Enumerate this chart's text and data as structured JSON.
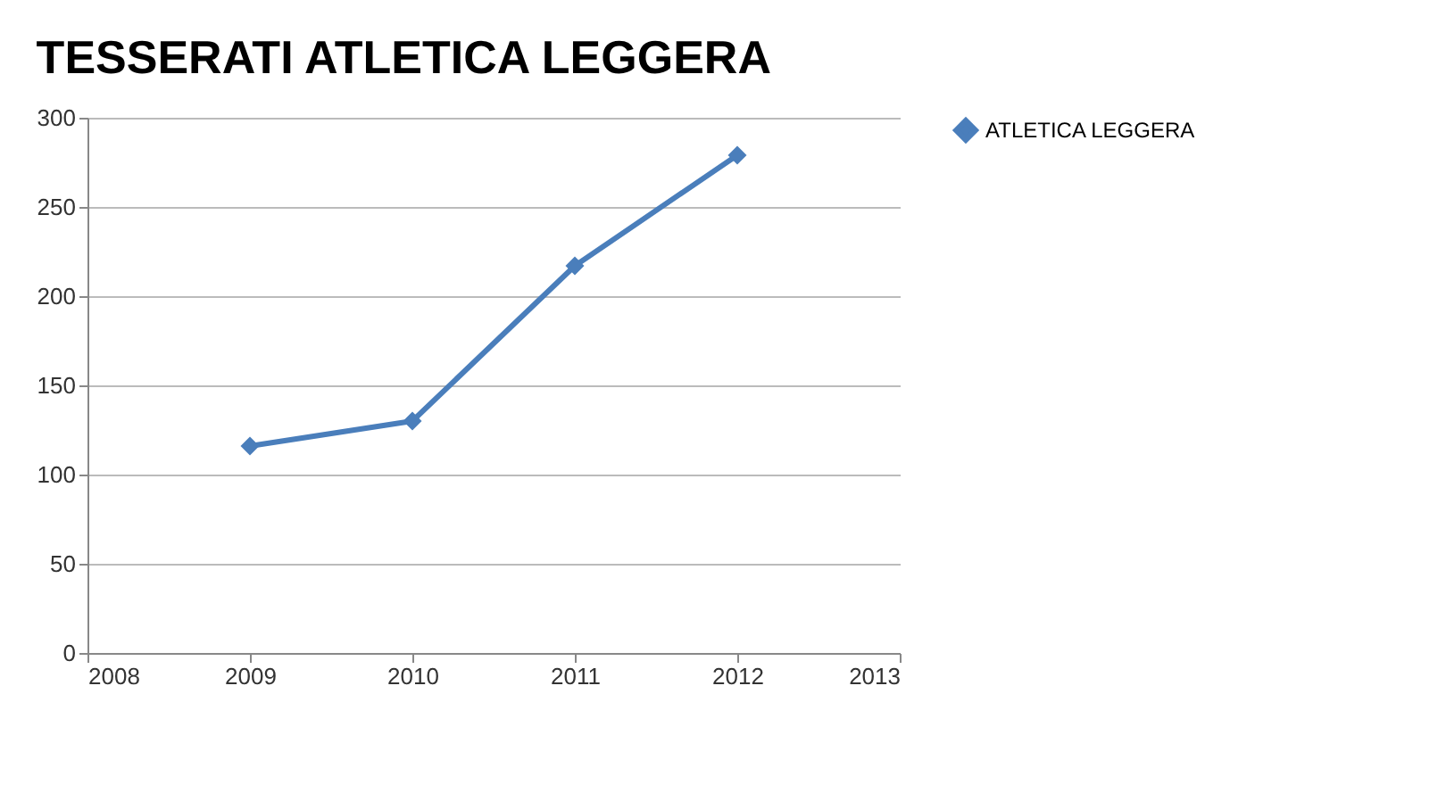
{
  "chart_data": {
    "type": "line",
    "title": "TESSERATI ATLETICA LEGGERA",
    "x": [
      2009,
      2010,
      2011,
      2012
    ],
    "series": [
      {
        "name": "ATLETICA LEGGERA",
        "color": "#4a7ebb",
        "values": [
          116,
          130,
          217,
          279
        ]
      }
    ],
    "xlim": [
      2008,
      2013
    ],
    "xticks": [
      2008,
      2009,
      2010,
      2011,
      2012,
      2013
    ],
    "ylim": [
      0,
      300
    ],
    "yticks": [
      0,
      50,
      100,
      150,
      200,
      250,
      300
    ],
    "grid": "y",
    "legend": "right",
    "marker": "diamond",
    "line_style": "solid"
  }
}
